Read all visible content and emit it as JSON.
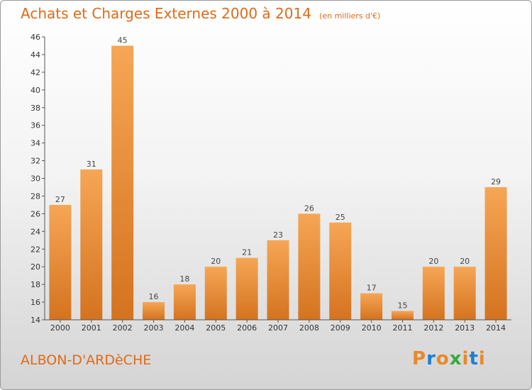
{
  "title": "Achats et Charges Externes 2000 à 2014",
  "subtitle": "(en milliers d'€)",
  "place": "ALBON-D'ARDèCHE",
  "logo": {
    "letters": [
      "P",
      "r",
      "o",
      "x",
      "i",
      "t",
      "i"
    ],
    "colors": [
      "#e8892a",
      "#1e7fd0",
      "#e8892a",
      "#3aa93a",
      "#e8892a",
      "#1e7fd0",
      "#e8892a"
    ]
  },
  "colors": {
    "bar_top": "#f6a655",
    "bar_bottom": "#d4731f",
    "accent": "#e06a18"
  },
  "chart_data": {
    "type": "bar",
    "categories": [
      "2000",
      "2001",
      "2002",
      "2003",
      "2004",
      "2005",
      "2006",
      "2007",
      "2008",
      "2009",
      "2010",
      "2011",
      "2012",
      "2013",
      "2014"
    ],
    "values": [
      27,
      31,
      45,
      16,
      18,
      20,
      21,
      23,
      26,
      25,
      17,
      15,
      20,
      20,
      29
    ],
    "ylim": [
      14,
      46
    ],
    "yticks": [
      14,
      16,
      18,
      20,
      22,
      24,
      26,
      28,
      30,
      32,
      34,
      36,
      38,
      40,
      42,
      44,
      46
    ],
    "grid": false,
    "xlabel": "",
    "ylabel": ""
  }
}
